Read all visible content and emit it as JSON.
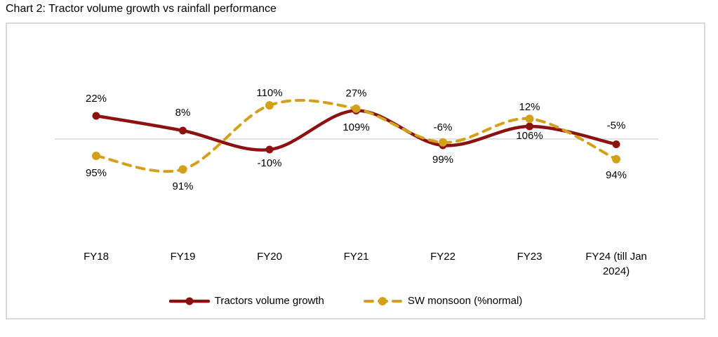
{
  "title": "Chart 2: Tractor volume growth vs rainfall performance",
  "colors": {
    "tractor": "#8B1211",
    "monsoon": "#D2A019",
    "axis_line": "#D9D9D9",
    "border": "#D9D9D9",
    "text": "#000000"
  },
  "chart_data": {
    "type": "line",
    "title": "Chart 2: Tractor volume growth vs rainfall performance",
    "categories": [
      "FY18",
      "FY19",
      "FY20",
      "FY21",
      "FY22",
      "FY23",
      "FY24 (till Jan 2024)"
    ],
    "series": [
      {
        "name": "Tractors volume growth",
        "axis": "primary",
        "style": "solid",
        "marker": "circle",
        "color": "#8B1211",
        "values": [
          22,
          8,
          -10,
          27,
          -6,
          12,
          -5
        ],
        "labels": [
          "22%",
          "8%",
          "-10%",
          "27%",
          "-6%",
          "12%",
          "-5%"
        ]
      },
      {
        "name": "SW monsoon (%normal)",
        "axis": "secondary",
        "style": "dashed",
        "marker": "circle",
        "color": "#D2A019",
        "values": [
          95,
          91,
          110,
          109,
          99,
          106,
          94
        ],
        "labels": [
          "95%",
          "91%",
          "110%",
          "109%",
          "99%",
          "106%",
          "94%"
        ]
      }
    ],
    "baseline": {
      "primary": 0,
      "secondary": 100
    },
    "gridlines": "horizontal-zero-line-only",
    "axes_labels_hidden": true,
    "legend_position": "bottom"
  }
}
